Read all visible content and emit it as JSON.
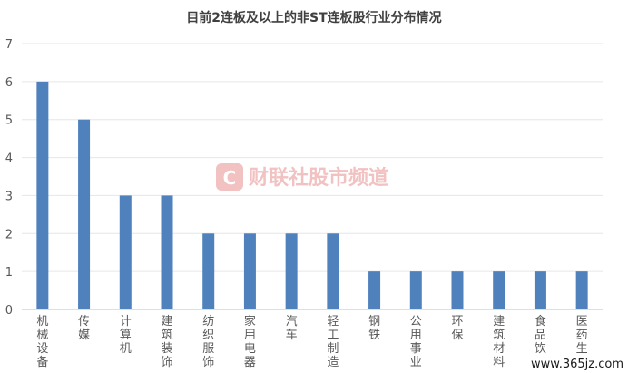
{
  "chart_data": {
    "type": "bar",
    "title": "目前2连板及以上的非ST连板股行业分布情况",
    "categories": [
      "机械设备",
      "传媒",
      "计算机",
      "建筑装饰",
      "纺织服饰",
      "家用电器",
      "汽车",
      "轻工制造",
      "钢铁",
      "公用事业",
      "环保",
      "建筑材料",
      "食品饮",
      "医药生"
    ],
    "values": [
      6,
      5,
      3,
      3,
      2,
      2,
      2,
      2,
      1,
      1,
      1,
      1,
      1,
      1
    ],
    "ylim": [
      0,
      7
    ],
    "yticks": [
      0,
      1,
      2,
      3,
      4,
      5,
      6,
      7
    ],
    "grid": true,
    "bar_color": "#4f81bd"
  },
  "watermark": {
    "text": "财联社股市频道",
    "logo": "C",
    "color": "#e05a5a"
  },
  "site_watermark": "www.365jz.com"
}
